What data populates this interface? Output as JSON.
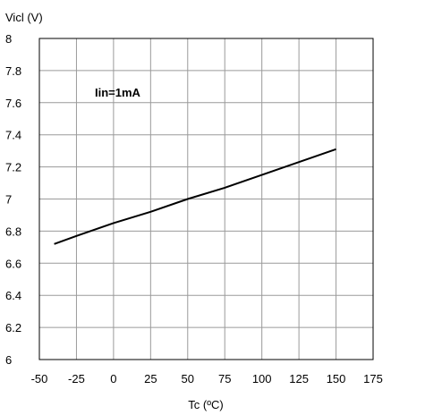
{
  "chart_data": {
    "type": "line",
    "ylabel": "Vicl (V)",
    "xlabel": "Tc (ºC)",
    "annotation": "Iin=1mA",
    "xlim": [
      -50,
      175
    ],
    "ylim": [
      6,
      8
    ],
    "x_ticks": [
      -50,
      -25,
      0,
      25,
      50,
      75,
      100,
      125,
      150,
      175
    ],
    "y_ticks": [
      6,
      6.2,
      6.4,
      6.6,
      6.8,
      7,
      7.2,
      7.4,
      7.6,
      7.8,
      8
    ],
    "y_tick_labels": [
      "6",
      "6.2",
      "6.4",
      "6.6",
      "6.8",
      "7",
      "7.2",
      "7.4",
      "7.6",
      "7.8",
      "8"
    ],
    "x_tick_labels": [
      "-50",
      "-25",
      "0",
      "25",
      "50",
      "75",
      "100",
      "125",
      "150",
      "175"
    ],
    "grid": true,
    "series": [
      {
        "color": "#000000",
        "x": [
          -40,
          -25,
          0,
          25,
          50,
          75,
          100,
          125,
          150
        ],
        "y": [
          6.72,
          6.77,
          6.85,
          6.92,
          7.0,
          7.07,
          7.15,
          7.23,
          7.31
        ]
      }
    ]
  }
}
